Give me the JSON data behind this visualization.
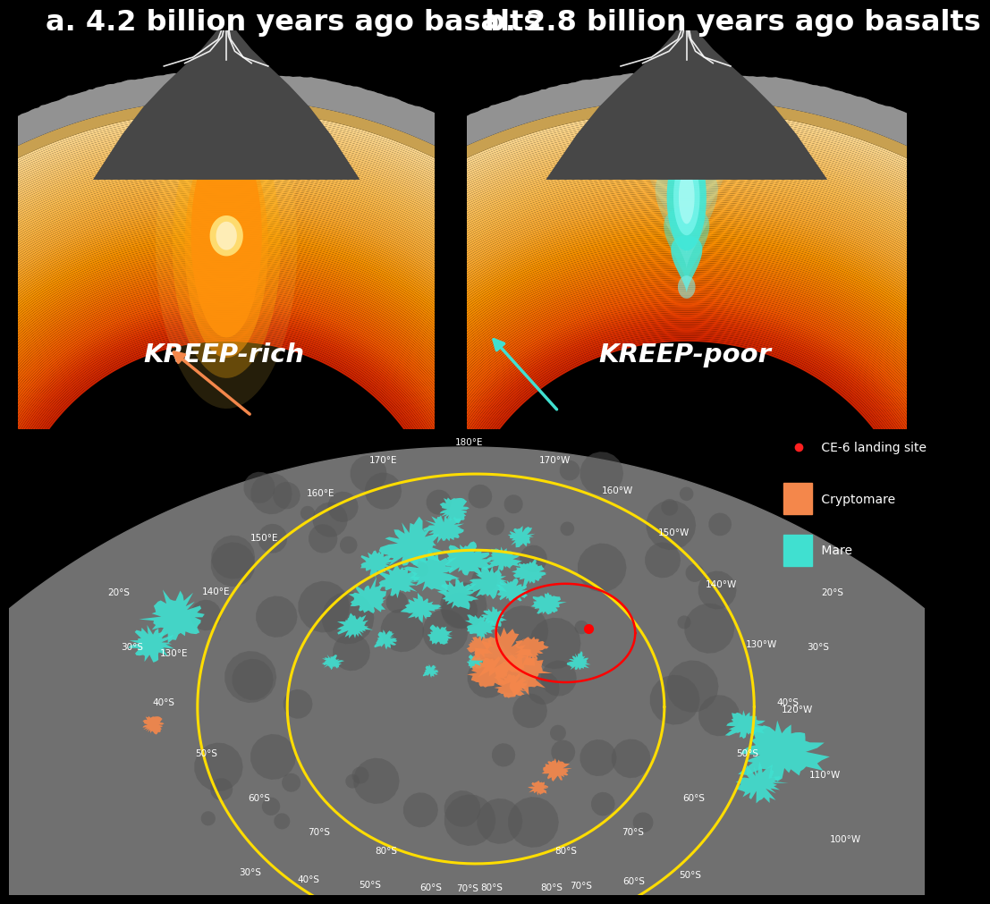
{
  "title_left": "a. 4.2 billion years ago basalts",
  "title_right": "b. 2.8 billion years ago basalts",
  "title_fontsize": 23,
  "title_color": "white",
  "background_color": "black",
  "label_kreep_rich": "KREEP-rich",
  "label_kreep_poor": "KREEP-poor",
  "kreep_label_fontsize": 21,
  "legend_ce6_color": "#ff2020",
  "legend_crypto_color": "#f4874b",
  "legend_mare_color": "#40e0d0"
}
